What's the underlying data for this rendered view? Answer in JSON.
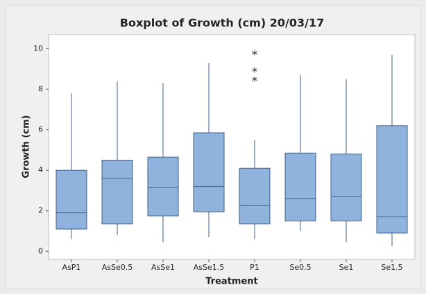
{
  "chart_data": {
    "type": "boxplot",
    "title": "Boxplot of Growth (cm) 20/03/17",
    "x_label": "Treatment",
    "y_label": "Growth (cm)",
    "categories": [
      "AsP1",
      "AsSe0.5",
      "AsSe1",
      "AsSe1.5",
      "P1",
      "Se0.5",
      "Se1",
      "Se1.5"
    ],
    "whisker_low": [
      0.6,
      0.8,
      0.45,
      0.7,
      0.6,
      1.0,
      0.45,
      0.25
    ],
    "q1": [
      1.1,
      1.35,
      1.75,
      1.95,
      1.35,
      1.5,
      1.5,
      0.9
    ],
    "median": [
      1.9,
      3.6,
      3.15,
      3.2,
      2.25,
      2.6,
      2.7,
      1.7
    ],
    "q3": [
      4.0,
      4.5,
      4.65,
      5.85,
      4.1,
      4.85,
      4.8,
      6.2
    ],
    "whisker_high": [
      7.8,
      8.4,
      8.3,
      9.3,
      5.5,
      8.7,
      8.5,
      9.7
    ],
    "outliers": [
      [],
      [],
      [],
      [],
      [
        9.8,
        8.95,
        8.5
      ],
      [],
      [],
      []
    ],
    "color": "#8fb3dd",
    "edge_color": "#3d5f88",
    "ylim": [
      -0.4,
      10.7
    ],
    "yticks": [
      0,
      2,
      4,
      6,
      8,
      10
    ]
  }
}
